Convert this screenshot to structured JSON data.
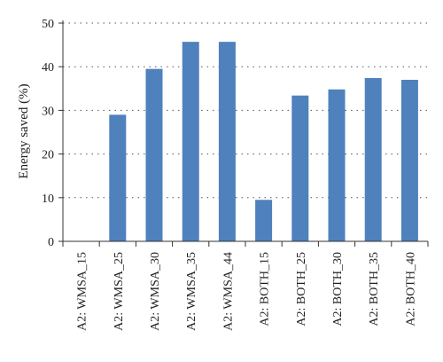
{
  "chart_data": {
    "type": "bar",
    "title": "",
    "xlabel": "",
    "ylabel": "Energy saved (%)",
    "ylim": [
      0,
      50
    ],
    "yticks": [
      0,
      10,
      20,
      30,
      40,
      50
    ],
    "grid": "horizontal dotted",
    "legend": "none",
    "bar_color": "#4f81bd",
    "categories": [
      "A2: WMSA_15",
      "A2: WMSA_25",
      "A2: WMSA_30",
      "A2: WMSA_35",
      "A2: WMSA_44",
      "A2: BOTH_15",
      "A2: BOTH_25",
      "A2: BOTH_30",
      "A2: BOTH_35",
      "A2: BOTH_40"
    ],
    "values": [
      0,
      29,
      39.5,
      45.7,
      45.7,
      9.5,
      33.4,
      34.8,
      37.4,
      37
    ]
  }
}
